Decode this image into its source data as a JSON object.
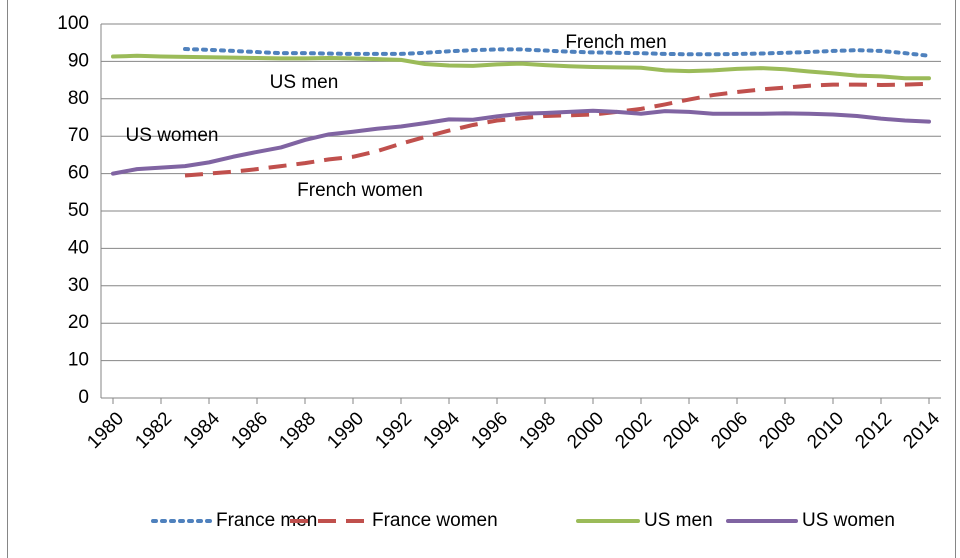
{
  "chart_data": {
    "type": "line",
    "x": [
      1980,
      1981,
      1982,
      1983,
      1984,
      1985,
      1986,
      1987,
      1988,
      1989,
      1990,
      1991,
      1992,
      1993,
      1994,
      1995,
      1996,
      1997,
      1998,
      1999,
      2000,
      2001,
      2002,
      2003,
      2004,
      2005,
      2006,
      2007,
      2008,
      2009,
      2010,
      2011,
      2012,
      2013,
      2014
    ],
    "xlim": [
      1979.5,
      2014.5
    ],
    "xticks": [
      1980,
      1982,
      1984,
      1986,
      1988,
      1990,
      1992,
      1994,
      1996,
      1998,
      2000,
      2002,
      2004,
      2006,
      2008,
      2010,
      2012,
      2014
    ],
    "ylim": [
      0,
      100
    ],
    "yticks": [
      0,
      10,
      20,
      30,
      40,
      50,
      60,
      70,
      80,
      90,
      100
    ],
    "grid": true,
    "legend": "bottom",
    "series": [
      {
        "name": "France men",
        "color": "#4f81bd",
        "style": "dotted",
        "values": [
          null,
          null,
          null,
          93.3,
          93.1,
          92.8,
          92.5,
          92.2,
          92.2,
          92.1,
          92.0,
          92.0,
          92.0,
          92.3,
          92.7,
          93.0,
          93.2,
          93.2,
          92.9,
          92.6,
          92.4,
          92.3,
          92.2,
          92.0,
          91.9,
          91.9,
          92.0,
          92.1,
          92.3,
          92.5,
          92.8,
          93.0,
          92.8,
          92.2,
          91.5
        ]
      },
      {
        "name": "France women",
        "color": "#c0504d",
        "style": "dashed",
        "values": [
          null,
          null,
          null,
          59.5,
          60.0,
          60.5,
          61.2,
          62.0,
          62.8,
          63.8,
          64.5,
          66.0,
          68.0,
          69.8,
          71.5,
          73.0,
          74.2,
          74.8,
          75.4,
          75.6,
          75.8,
          76.5,
          77.3,
          78.5,
          79.8,
          81.0,
          81.8,
          82.5,
          83.0,
          83.5,
          83.8,
          83.8,
          83.7,
          83.8,
          84.0
        ]
      },
      {
        "name": "US men",
        "color": "#9bbb59",
        "style": "solid",
        "values": [
          91.3,
          91.5,
          91.3,
          91.2,
          91.1,
          91.0,
          90.9,
          90.8,
          90.8,
          90.9,
          90.8,
          90.6,
          90.4,
          89.3,
          88.9,
          88.8,
          89.2,
          89.4,
          89.0,
          88.7,
          88.5,
          88.4,
          88.3,
          87.6,
          87.4,
          87.6,
          88.0,
          88.2,
          87.9,
          87.3,
          86.8,
          86.2,
          86.0,
          85.5,
          85.5
        ]
      },
      {
        "name": "US women",
        "color": "#8064a2",
        "style": "solid",
        "values": [
          60.0,
          61.2,
          61.6,
          62.0,
          63.0,
          64.5,
          65.8,
          67.0,
          69.0,
          70.5,
          71.2,
          72.0,
          72.6,
          73.5,
          74.5,
          74.4,
          75.3,
          76.0,
          76.2,
          76.5,
          76.8,
          76.5,
          76.0,
          76.7,
          76.5,
          76.0,
          76.0,
          76.0,
          76.1,
          76.0,
          75.8,
          75.4,
          74.7,
          74.2,
          73.9
        ]
      }
    ],
    "annotations": [
      "French men",
      "US men",
      "US women",
      "French women"
    ]
  }
}
